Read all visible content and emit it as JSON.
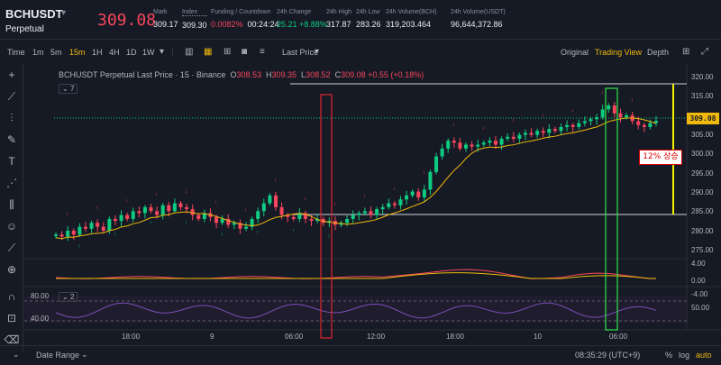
{
  "header": {
    "symbol": "BCHUSDT",
    "contract_type": "Perpetual",
    "last_price": "309.08",
    "stats": [
      {
        "label": "Mark",
        "value": "309.17"
      },
      {
        "label": "Index",
        "value": "309.30"
      },
      {
        "label": "Funding / Countdown",
        "value_a": "0.0082%",
        "value_b": "00:24:24"
      },
      {
        "label": "24h Change",
        "value": "25.21 +8.88%"
      },
      {
        "label": "24h High",
        "value": "317.87"
      },
      {
        "label": "24h Low",
        "value": "283.26"
      },
      {
        "label": "24h Volume(BCH)",
        "value": "319,203.464"
      },
      {
        "label": "24h Volume(USDT)",
        "value": "96,644,372.86"
      }
    ]
  },
  "toolbar": {
    "time_label": "Time",
    "intervals": [
      "1m",
      "5m",
      "15m",
      "1H",
      "4H",
      "1D",
      "1W"
    ],
    "active_interval": "15m",
    "price_type": "Last Price",
    "views": [
      "Original",
      "Trading View",
      "Depth"
    ],
    "active_view": "Trading View"
  },
  "legend": {
    "title": "BCHUSDT Perpetual Last Price · 15 · Binance",
    "o": "308.53",
    "h": "309.35",
    "l": "308.52",
    "c": "309.08",
    "change": "+0.55 (+0.18%)",
    "indicator_count": "7",
    "indicator_count2": "2"
  },
  "price_axis": {
    "labels": [
      "320.00",
      "315.00",
      "310.00",
      "305.00",
      "300.00",
      "295.00",
      "290.00",
      "285.00",
      "280.00",
      "275.00"
    ],
    "last_price": "309.08",
    "vol_labels": [
      "4.00",
      "0.00",
      "-4.00"
    ],
    "rsi_labels_right": [
      "50.00"
    ],
    "rsi_labels_left": [
      "80.00",
      "40.00"
    ]
  },
  "time_axis": {
    "labels": [
      "18:00",
      "9",
      "06:00",
      "12:00",
      "18:00",
      "10",
      "06:00"
    ]
  },
  "annotation": {
    "text": "12% 상승"
  },
  "footer": {
    "date_range": "Date Range",
    "clock": "08:35:29 (UTC+9)",
    "pct": "%",
    "log": "log",
    "auto": "auto"
  },
  "colors": {
    "up": "#0ecb81",
    "down": "#f6465d",
    "accent": "#f0b90b",
    "bg": "#161a25"
  },
  "chart_data": {
    "type": "candlestick",
    "x_labels": [
      "18:00",
      "9",
      "06:00",
      "12:00",
      "18:00",
      "10",
      "06:00"
    ],
    "ylim": [
      275,
      322
    ],
    "close_series": [
      280,
      279.5,
      281,
      280,
      282,
      281.5,
      283,
      282,
      281,
      284,
      283.5,
      285,
      284,
      286,
      285.5,
      287,
      286,
      285,
      287.5,
      286,
      288,
      287,
      286.5,
      285,
      284,
      285.5,
      284.5,
      283,
      284,
      282.5,
      283,
      281.5,
      282,
      284,
      286,
      288,
      290,
      287,
      285,
      284.5,
      284,
      285.5,
      284,
      283.5,
      284,
      283,
      283.5,
      282.5,
      283,
      284,
      285,
      285.5,
      286,
      285,
      286.5,
      287,
      288,
      287.5,
      289,
      290,
      291,
      289.5,
      291.5,
      296,
      300,
      302,
      304,
      303.5,
      302,
      303,
      302.5,
      303,
      303.5,
      304,
      303,
      304.5,
      305,
      304.5,
      305.5,
      306,
      305.5,
      306.5,
      306,
      307,
      306.5,
      307.5,
      308,
      307.5,
      308.5,
      309,
      309.5,
      310,
      312,
      313,
      311,
      310,
      310.5,
      309,
      308,
      307.5,
      308.5,
      309.08
    ]
  }
}
